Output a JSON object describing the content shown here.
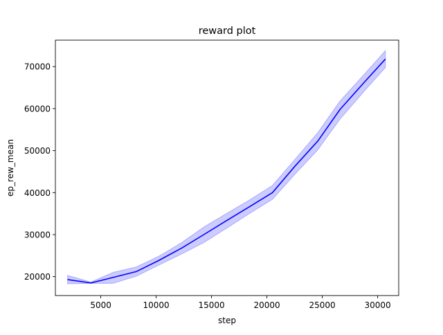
{
  "chart_data": {
    "type": "line",
    "title": "reward plot",
    "xlabel": "step",
    "ylabel": "ep_rew_mean",
    "xlim": [
      900,
      31900
    ],
    "ylim": [
      15500,
      76300
    ],
    "xticks": [
      5000,
      10000,
      15000,
      20000,
      25000,
      30000
    ],
    "yticks": [
      20000,
      30000,
      40000,
      50000,
      60000,
      70000
    ],
    "grid": false,
    "legend": "none",
    "series": [
      {
        "color": "#0000ff",
        "band_color": "#0000ff",
        "band_opacity": 0.2,
        "x": [
          2000,
          4100,
          6100,
          8200,
          10200,
          12300,
          14300,
          16400,
          18400,
          20500,
          22500,
          24600,
          26600,
          28700,
          30700
        ],
        "y": [
          19300,
          18500,
          19800,
          21200,
          23800,
          26800,
          30000,
          33400,
          36600,
          40000,
          46200,
          52300,
          59800,
          66000,
          71800
        ],
        "y_lower": [
          18300,
          18400,
          18400,
          20100,
          22700,
          25400,
          28100,
          31600,
          35000,
          38400,
          44300,
          50200,
          57500,
          63900,
          69800
        ],
        "y_upper": [
          20300,
          18700,
          21000,
          22300,
          24800,
          28100,
          31800,
          35100,
          38200,
          41700,
          47800,
          54300,
          61800,
          67900,
          73800
        ]
      }
    ]
  }
}
